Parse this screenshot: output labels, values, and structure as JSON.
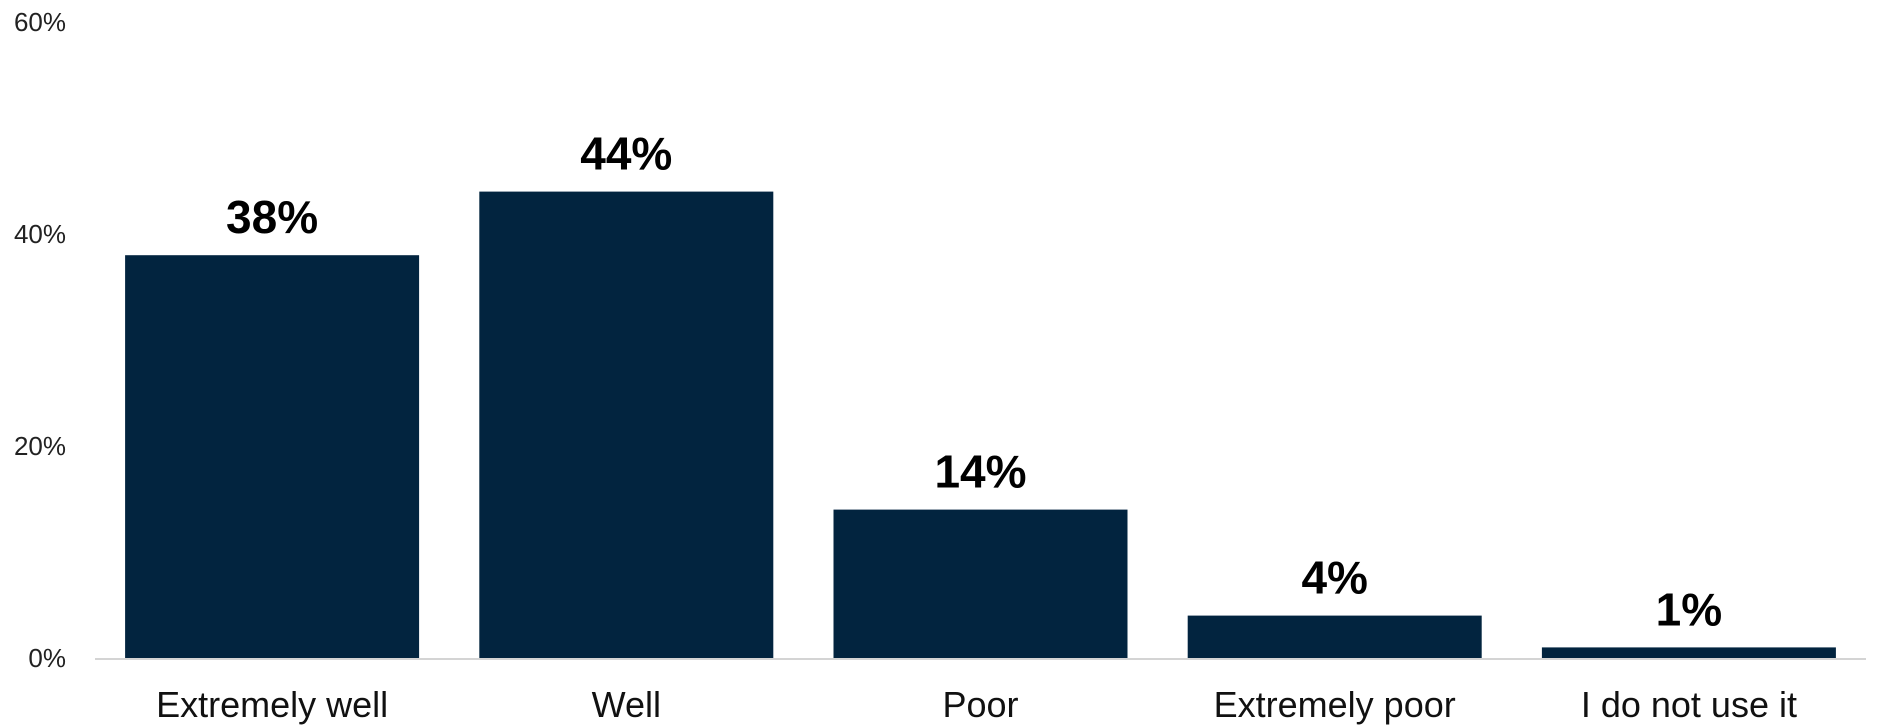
{
  "chart_data": {
    "type": "bar",
    "categories": [
      "Extremely well",
      "Well",
      "Poor",
      "Extremely poor",
      "I do not use it"
    ],
    "values": [
      38,
      44,
      14,
      4,
      1
    ],
    "value_labels": [
      "38%",
      "44%",
      "14%",
      "4%",
      "1%"
    ],
    "y_ticks": [
      0,
      20,
      40,
      60
    ],
    "y_tick_labels": [
      "0%",
      "20%",
      "40%",
      "60%"
    ],
    "ylim": [
      0,
      60
    ],
    "grid": false,
    "legend": "none",
    "bar_color": "#02243f"
  }
}
